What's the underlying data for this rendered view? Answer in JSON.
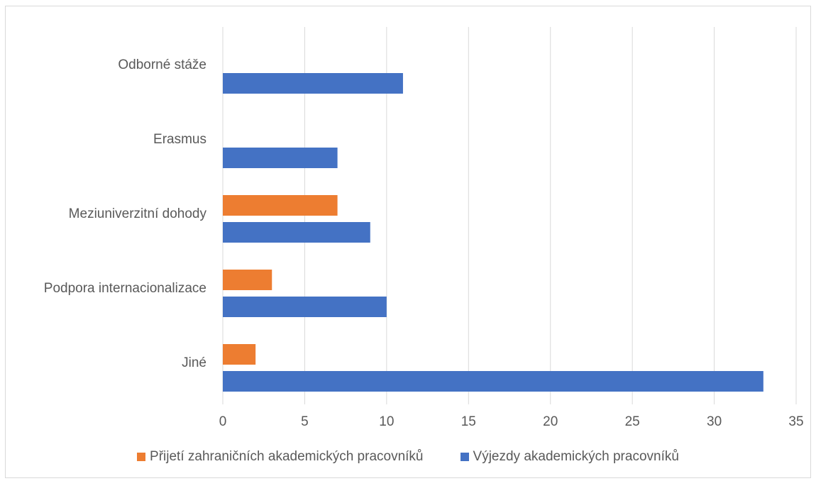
{
  "chart_data": {
    "type": "bar",
    "orientation": "horizontal",
    "title": "",
    "xlabel": "",
    "ylabel": "",
    "categories": [
      "Jiné",
      "Podpora internacionalizace",
      "Meziuniverzitní dohody",
      "Erasmus",
      "Odborné stáže"
    ],
    "series": [
      {
        "name": "Přijetí zahraničních akademických pracovníků",
        "color": "#ed7d31",
        "values": [
          2,
          3,
          7,
          0,
          0
        ]
      },
      {
        "name": "Výjezdy akademických pracovníků",
        "color": "#4472c4",
        "values": [
          33,
          10,
          9,
          7,
          11
        ]
      }
    ],
    "xlim": [
      0,
      35
    ],
    "xticks": [
      "0",
      "5",
      "10",
      "15",
      "20",
      "25",
      "30",
      "35"
    ],
    "grid": true,
    "legend_position": "bottom"
  }
}
